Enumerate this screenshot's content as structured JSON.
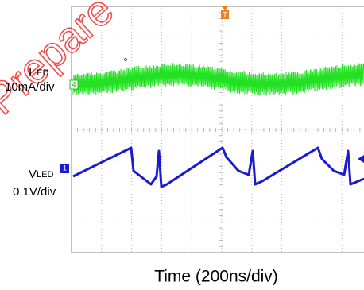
{
  "watermark": "Prepare",
  "channels": [
    {
      "symbol": "I",
      "subscript": "LED",
      "scale": "10mA/div",
      "marker": "4"
    },
    {
      "symbol": "V",
      "subscript": "LED",
      "scale": "0.1V/div",
      "marker": "1"
    }
  ],
  "trigger_marker": "T",
  "x_axis_label": "Time (200ns/div)"
}
